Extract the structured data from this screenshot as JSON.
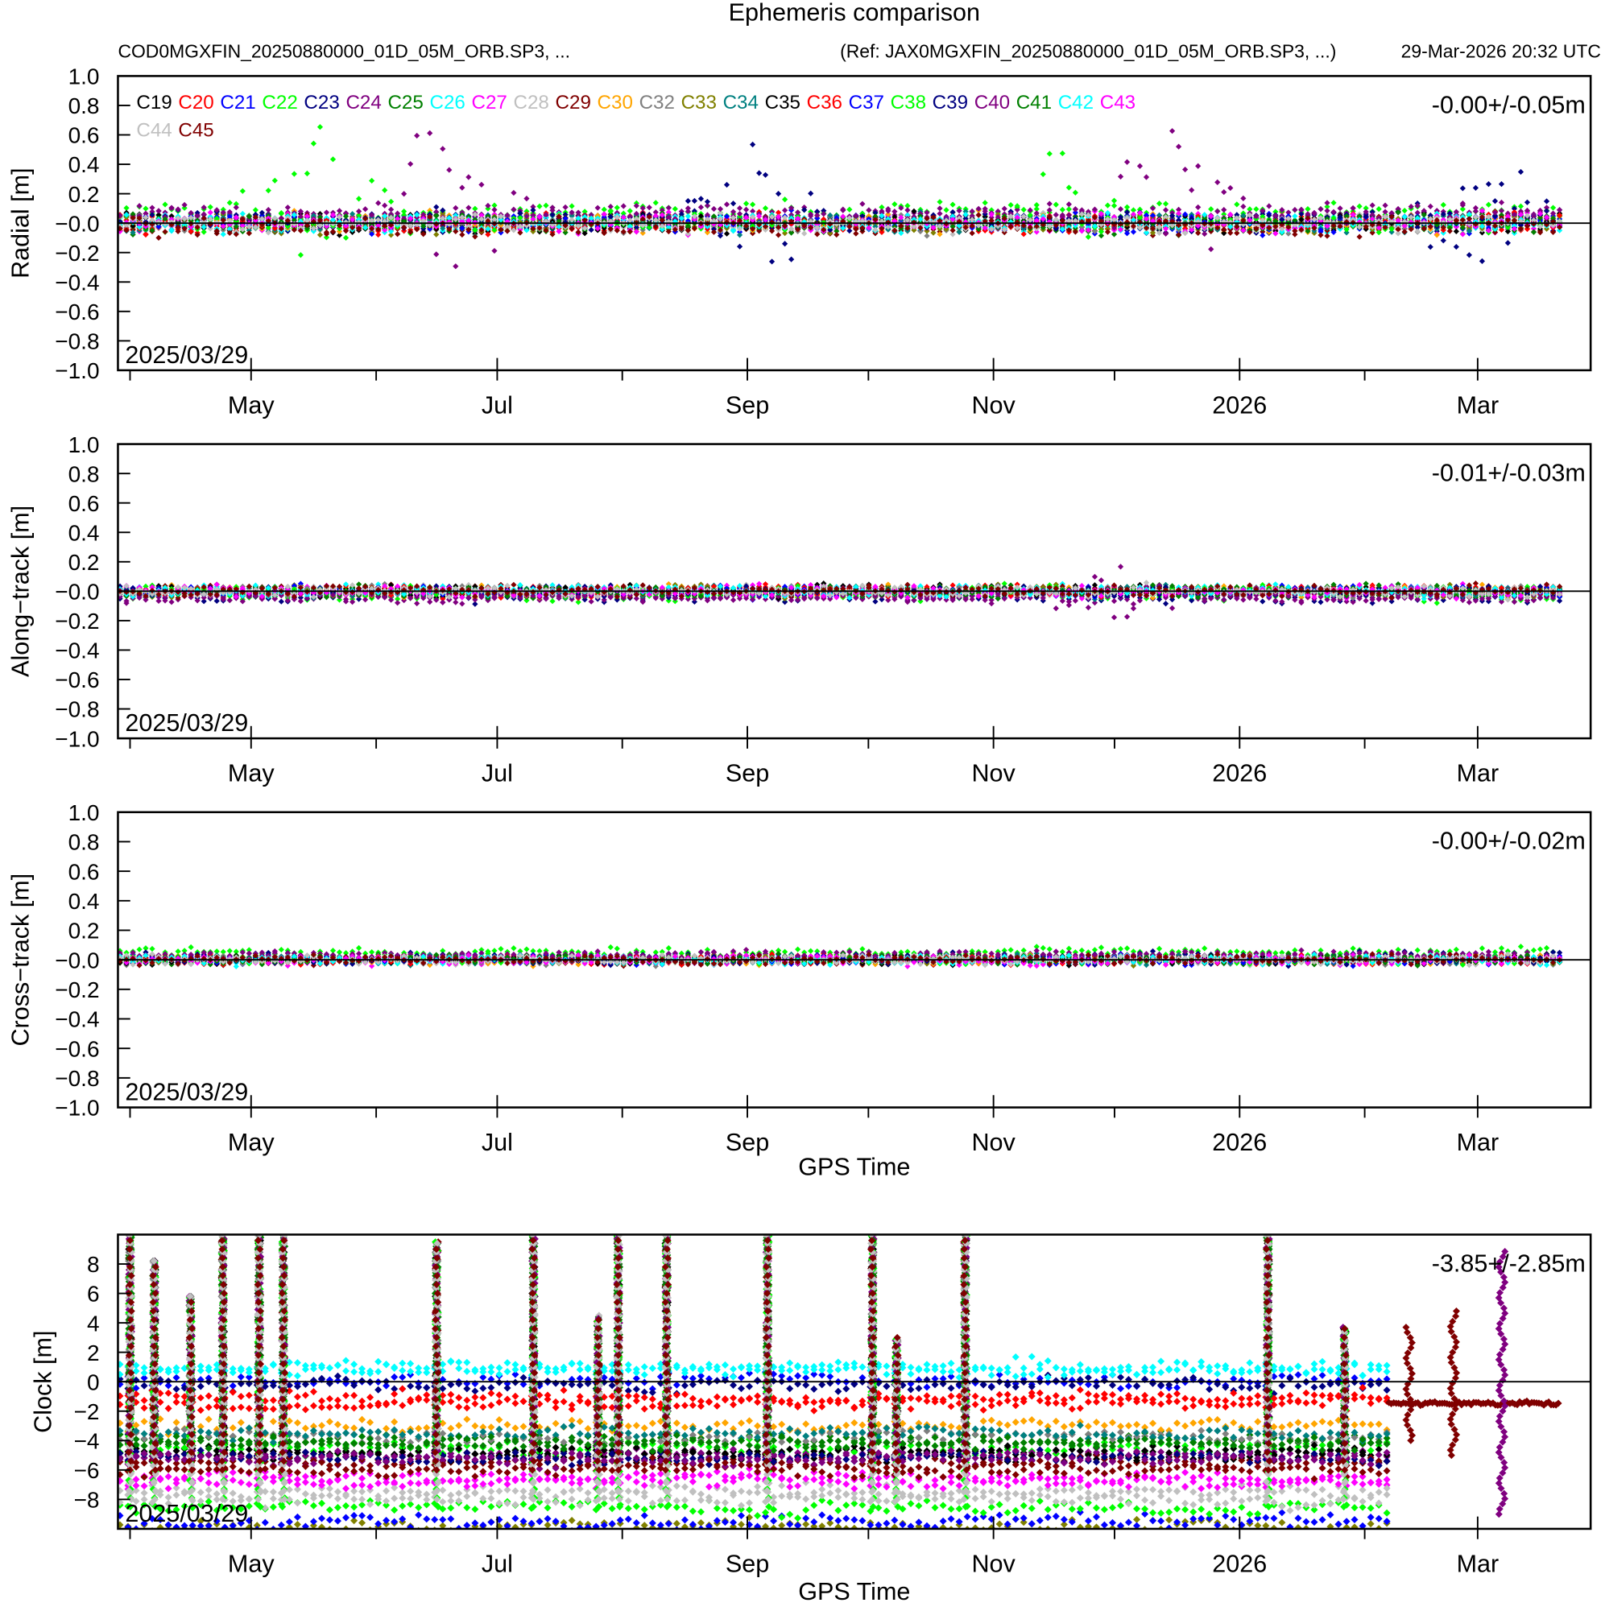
{
  "title": "Ephemeris comparison",
  "subtitle_left": "COD0MGXFIN_20250880000_01D_05M_ORB.SP3, ...",
  "subtitle_ref": "(Ref: JAX0MGXFIN_20250880000_01D_05M_ORB.SP3, ...)",
  "subtitle_time": "29-Mar-2026 20:32 UTC",
  "xlabel": "GPS Time",
  "date_label": "2025/03/29",
  "xlim": [
    "2025-03-29",
    "2026-03-29"
  ],
  "x_minor_ticks": [
    "2025-04-01",
    "2025-05-01",
    "2025-06-01",
    "2025-07-01",
    "2025-08-01",
    "2025-09-01",
    "2025-10-01",
    "2025-11-01",
    "2025-12-01",
    "2026-01-01",
    "2026-02-01",
    "2026-03-01"
  ],
  "x_tick_labels": [
    {
      "date": "2025-05-01",
      "label": "May"
    },
    {
      "date": "2025-07-01",
      "label": "Jul"
    },
    {
      "date": "2025-09-01",
      "label": "Sep"
    },
    {
      "date": "2025-11-01",
      "label": "Nov"
    },
    {
      "date": "2026-01-01",
      "label": "2026"
    },
    {
      "date": "2026-03-01",
      "label": "Mar"
    }
  ],
  "legend": [
    {
      "name": "C19",
      "color": "#000000"
    },
    {
      "name": "C20",
      "color": "#ff0000"
    },
    {
      "name": "C21",
      "color": "#0000ff"
    },
    {
      "name": "C22",
      "color": "#00ff00"
    },
    {
      "name": "C23",
      "color": "#000080"
    },
    {
      "name": "C24",
      "color": "#800080"
    },
    {
      "name": "C25",
      "color": "#008000"
    },
    {
      "name": "C26",
      "color": "#00ffff"
    },
    {
      "name": "C27",
      "color": "#ff00ff"
    },
    {
      "name": "C28",
      "color": "#c0c0c0"
    },
    {
      "name": "C29",
      "color": "#800000"
    },
    {
      "name": "C30",
      "color": "#ffa500"
    },
    {
      "name": "C32",
      "color": "#808080"
    },
    {
      "name": "C33",
      "color": "#808000"
    },
    {
      "name": "C34",
      "color": "#008080"
    },
    {
      "name": "C35",
      "color": "#000000"
    },
    {
      "name": "C36",
      "color": "#ff0000"
    },
    {
      "name": "C37",
      "color": "#0000ff"
    },
    {
      "name": "C38",
      "color": "#00ff00"
    },
    {
      "name": "C39",
      "color": "#000080"
    },
    {
      "name": "C40",
      "color": "#800080"
    },
    {
      "name": "C41",
      "color": "#008000"
    },
    {
      "name": "C42",
      "color": "#00ffff"
    },
    {
      "name": "C43",
      "color": "#ff00ff"
    },
    {
      "name": "C44",
      "color": "#c0c0c0"
    },
    {
      "name": "C45",
      "color": "#800000"
    }
  ],
  "chart_data": [
    {
      "type": "scatter",
      "ylabel": "Radial [m]",
      "ylim": [
        -1.0,
        1.0
      ],
      "yticks": [
        "1.0",
        "0.8",
        "0.6",
        "0.4",
        "0.2",
        "-0.0",
        "-0.2",
        "-0.4",
        "-0.6",
        "-0.8",
        "-1.0"
      ],
      "stat_label": "-0.00+/-0.05m",
      "data_end": "2026-03-22",
      "spread": 0.05,
      "series_offsets": {
        "C22": 0.08,
        "C24": 0.06,
        "C40": 0.06,
        "C39": 0.03,
        "C29": -0.02,
        "C45": -0.02
      },
      "peaks": [
        {
          "series": "C22",
          "date": "2025-05-16",
          "max": 0.65,
          "min": -0.3
        },
        {
          "series": "C24",
          "date": "2025-06-19",
          "max": 0.78,
          "min": -0.45
        },
        {
          "series": "C39",
          "date": "2025-09-05",
          "max": 0.62,
          "min": -0.28
        },
        {
          "series": "C38",
          "date": "2025-11-16",
          "max": 0.58,
          "min": -0.22
        },
        {
          "series": "C40",
          "date": "2025-12-16",
          "max": 0.62,
          "min": -0.3
        },
        {
          "series": "C23",
          "date": "2026-03-03",
          "max": 0.56,
          "min": -0.28
        }
      ]
    },
    {
      "type": "scatter",
      "ylabel": "Along-track [m]",
      "ylim": [
        -1.0,
        1.0
      ],
      "yticks": [
        "1.0",
        "0.8",
        "0.6",
        "0.4",
        "0.2",
        "-0.0",
        "-0.2",
        "-0.4",
        "-0.6",
        "-0.8",
        "-1.0"
      ],
      "stat_label": "-0.01+/-0.03m",
      "data_end": "2026-03-22",
      "spread": 0.03,
      "series_offsets": {
        "C24": -0.04,
        "C40": -0.04,
        "C23": -0.04,
        "C22": -0.03
      },
      "peaks": [
        {
          "series": "C40",
          "date": "2025-12-01",
          "max": 0.2,
          "min": -0.2
        }
      ]
    },
    {
      "type": "scatter",
      "ylabel": "Cross-track [m]",
      "ylim": [
        -1.0,
        1.0
      ],
      "yticks": [
        "1.0",
        "0.8",
        "0.6",
        "0.4",
        "0.2",
        "-0.0",
        "-0.2",
        "-0.4",
        "-0.6",
        "-0.8",
        "-1.0"
      ],
      "stat_label": "-0.00+/-0.02m",
      "data_end": "2026-03-22",
      "spread": 0.025,
      "series_offsets": {
        "C22": 0.05,
        "C23": 0.02,
        "C24": 0.02,
        "C40": 0.03
      },
      "peaks": []
    },
    {
      "type": "scatter",
      "ylabel": "Clock [m]",
      "ylim": [
        -10,
        10
      ],
      "yticks": [
        "8",
        "6",
        "4",
        "2",
        "0",
        "-2",
        "-4",
        "-6",
        "-8"
      ],
      "stat_label": "-3.85+/-2.85m",
      "data_end": "2026-02-07",
      "spread": 0.35,
      "series_offsets": {
        "C19": -5.0,
        "C20": -1.5,
        "C21": 0.0,
        "C22": -4.5,
        "C23": -0.2,
        "C24": -5.0,
        "C25": -4.0,
        "C26": 1.0,
        "C27": -6.5,
        "C28": -7.5,
        "C29": -5.5,
        "C30": -3.0,
        "C32": -3.8,
        "C33": -9.8,
        "C34": -3.5,
        "C35": -4.8,
        "C36": -1.0,
        "C37": -9.5,
        "C38": -8.5,
        "C39": -5.2,
        "C40": -5.3,
        "C41": -4.2,
        "C42": 0.8,
        "C43": -6.8,
        "C44": -8.0,
        "C45": -6.0
      },
      "late_series": {
        "series": "C45",
        "start": "2026-02-07",
        "end": "2026-03-21",
        "level": -1.5,
        "spikes": [
          {
            "date": "2026-02-12",
            "max": 4,
            "min": -4
          },
          {
            "date": "2026-02-23",
            "max": 5,
            "min": -5
          },
          {
            "date": "2026-03-07",
            "max": 9,
            "min": -9
          }
        ]
      },
      "spikes": [
        {
          "date": "2025-04-01",
          "max": 10
        },
        {
          "date": "2025-04-07",
          "max": 8.2
        },
        {
          "date": "2025-04-16",
          "max": 5.8
        },
        {
          "date": "2025-04-24",
          "max": 10
        },
        {
          "date": "2025-05-03",
          "max": 10
        },
        {
          "date": "2025-05-09",
          "max": 10
        },
        {
          "date": "2025-06-16",
          "max": 9.5
        },
        {
          "date": "2025-07-10",
          "max": 10
        },
        {
          "date": "2025-07-26",
          "max": 4.5
        },
        {
          "date": "2025-07-31",
          "max": 10
        },
        {
          "date": "2025-08-12",
          "max": 10
        },
        {
          "date": "2025-09-06",
          "max": 10
        },
        {
          "date": "2025-10-02",
          "max": 10
        },
        {
          "date": "2025-10-08",
          "max": 3
        },
        {
          "date": "2025-10-25",
          "max": 10
        },
        {
          "date": "2026-01-08",
          "max": 10
        },
        {
          "date": "2026-01-27",
          "max": 3.8
        }
      ]
    }
  ]
}
